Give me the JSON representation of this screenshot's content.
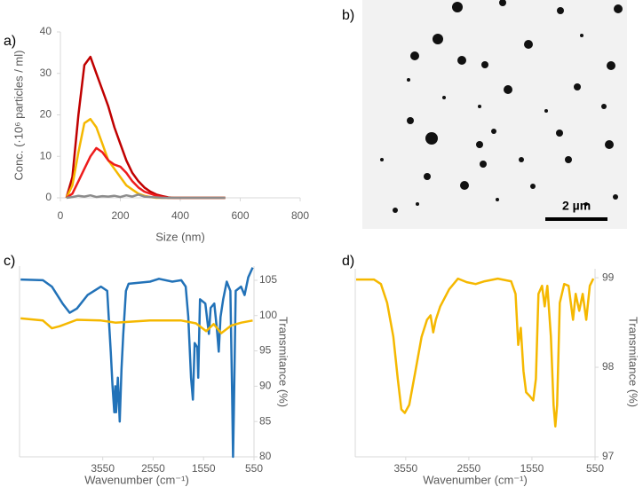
{
  "chart_data": [
    {
      "type": "line",
      "label": "a)",
      "x_label": "Size (nm)",
      "y_label": "Conc. (·10⁶ particles / ml)",
      "x": [
        20,
        40,
        60,
        80,
        100,
        120,
        140,
        160,
        180,
        200,
        220,
        240,
        260,
        280,
        300,
        320,
        340,
        360,
        380,
        400,
        450,
        500,
        550
      ],
      "series": [
        {
          "color": "#c00000",
          "values": [
            0,
            5,
            20,
            32,
            34,
            30,
            26,
            22,
            17,
            13,
            9,
            6,
            4,
            2.5,
            1.5,
            0.8,
            0.4,
            0.1,
            0,
            0,
            0,
            0,
            0
          ]
        },
        {
          "color": "#f5b800",
          "values": [
            0,
            3,
            11,
            18,
            19,
            17,
            13,
            9,
            7,
            5,
            3,
            2,
            1,
            0.5,
            0.2,
            0,
            0,
            0,
            0,
            0,
            0,
            0,
            0
          ]
        },
        {
          "color": "#ee1c1c",
          "values": [
            0,
            1,
            4,
            7,
            10,
            12,
            11,
            9,
            8,
            7.5,
            6,
            4,
            2.5,
            1.5,
            1,
            0.5,
            0.2,
            0,
            0,
            0,
            0,
            0,
            0
          ]
        },
        {
          "color": "#8c8c8c",
          "values": [
            0,
            0.2,
            0.5,
            0.3,
            0.6,
            0.2,
            0.4,
            0.3,
            0.5,
            0.2,
            0.6,
            0.3,
            0.8,
            0.3,
            0.2,
            0.1,
            0,
            0,
            0,
            0,
            0,
            0,
            0
          ]
        }
      ],
      "xlim": [
        0,
        800
      ],
      "xticks": [
        0,
        200,
        400,
        600,
        800
      ],
      "ylim": [
        0,
        40
      ],
      "yticks": [
        0,
        10,
        20,
        30,
        40
      ]
    },
    {
      "type": "line",
      "label": "c)",
      "x_label": "Wavenumber (cm⁻¹)",
      "y_label": "Transmitance (%)",
      "y_axis_position": "right",
      "series": [
        {
          "color": "#2272b8",
          "x": [
            5178,
            4736,
            4559,
            4346,
            4205,
            4063,
            3851,
            3585,
            3462,
            3391,
            3355,
            3320,
            3302,
            3285,
            3250,
            3214,
            3178,
            3143,
            3090,
            3037,
            2612,
            2435,
            2170,
            1993,
            1904,
            1853,
            1798,
            1762,
            1727,
            1674,
            1656,
            1621,
            1515,
            1444,
            1409,
            1338,
            1285,
            1250,
            1214,
            1161,
            1090,
            1019,
            984,
            966,
            949,
            913,
            807,
            736,
            665,
            577
          ],
          "values": [
            105.1,
            105,
            104.1,
            101.7,
            100.4,
            101,
            102.9,
            104.1,
            103.5,
            94.9,
            90,
            86.3,
            90,
            86.3,
            91.2,
            85,
            92.4,
            97.4,
            103.5,
            104.5,
            104.8,
            105.2,
            104.8,
            105,
            104.1,
            99.8,
            91.2,
            88.1,
            96.1,
            95.5,
            91.2,
            102.3,
            101.7,
            97.4,
            101.1,
            101.7,
            98,
            94.9,
            99.8,
            102.3,
            104.8,
            103.5,
            88.7,
            80,
            86.3,
            103.5,
            104.1,
            102.9,
            105.4,
            106.8
          ]
        },
        {
          "color": "#f5b800",
          "x": [
            5178,
            4736,
            4559,
            4400,
            4063,
            3585,
            3300,
            2612,
            1993,
            1700,
            1500,
            1350,
            1200,
            1000,
            800,
            577
          ],
          "values": [
            99.6,
            99.3,
            98.2,
            98.5,
            99.4,
            99.3,
            99,
            99.3,
            99.3,
            98.9,
            97.8,
            98.8,
            97.5,
            98.6,
            99,
            99.3
          ]
        }
      ],
      "xlim": [
        5200,
        550
      ],
      "xticks": [
        3550,
        2550,
        1550,
        550
      ],
      "ylim": [
        80,
        107
      ],
      "yticks": [
        80,
        85,
        90,
        95,
        100,
        105
      ]
    },
    {
      "type": "line",
      "label": "d)",
      "x_label": "Wavenumber (cm⁻¹)",
      "y_label": "Transmitance (%)",
      "y_axis_position": "right",
      "series": [
        {
          "color": "#f5b800",
          "x": [
            4336,
            4055,
            3943,
            3845,
            3746,
            3676,
            3620,
            3564,
            3494,
            3396,
            3298,
            3213,
            3157,
            3115,
            3073,
            3003,
            2863,
            2722,
            2582,
            2442,
            2301,
            2091,
            1880,
            1810,
            1768,
            1726,
            1684,
            1642,
            1586,
            1530,
            1488,
            1446,
            1390,
            1348,
            1306,
            1249,
            1207,
            1179,
            1151,
            1109,
            1039,
            969,
            899,
            857,
            801,
            745,
            689,
            633,
            577
          ],
          "values": [
            98.98,
            98.98,
            98.93,
            98.72,
            98.34,
            97.87,
            97.53,
            97.49,
            97.58,
            97.96,
            98.34,
            98.53,
            98.58,
            98.39,
            98.53,
            98.68,
            98.87,
            98.99,
            98.95,
            98.93,
            98.96,
            98.99,
            98.96,
            98.82,
            98.25,
            98.44,
            97.96,
            97.72,
            97.68,
            97.63,
            97.87,
            98.82,
            98.91,
            98.68,
            98.91,
            98.34,
            97.58,
            97.34,
            97.58,
            98.72,
            98.93,
            98.91,
            98.53,
            98.82,
            98.63,
            98.82,
            98.53,
            98.91,
            98.99
          ]
        }
      ],
      "xlim": [
        4350,
        550
      ],
      "xticks": [
        3550,
        2550,
        1550,
        550
      ],
      "ylim": [
        97,
        99.1
      ],
      "yticks": [
        97,
        98,
        99
      ]
    }
  ],
  "image": {
    "label": "b)",
    "scale_bar": "2 µm"
  }
}
